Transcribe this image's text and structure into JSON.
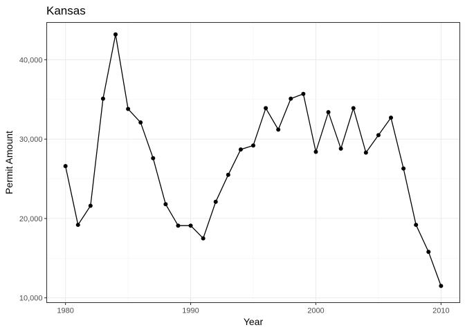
{
  "chart_data": {
    "type": "line",
    "title": "Kansas",
    "xlabel": "Year",
    "ylabel": "Permit Amount",
    "xlim": [
      1978.5,
      2011.5
    ],
    "ylim": [
      9400,
      44700
    ],
    "x_ticks": [
      1980,
      1990,
      2000,
      2010
    ],
    "x_tick_labels": [
      "1980",
      "1990",
      "2000",
      "2010"
    ],
    "y_ticks": [
      10000,
      20000,
      30000,
      40000
    ],
    "y_tick_labels": [
      "10,000",
      "20,000",
      "30,000",
      "40,000"
    ],
    "grid": true,
    "legend": "none",
    "x": [
      1980,
      1981,
      1982,
      1983,
      1984,
      1985,
      1986,
      1987,
      1988,
      1989,
      1990,
      1991,
      1992,
      1993,
      1994,
      1995,
      1996,
      1997,
      1998,
      1999,
      2000,
      2001,
      2002,
      2003,
      2004,
      2005,
      2006,
      2007,
      2008,
      2009,
      2010
    ],
    "series": [
      {
        "values": [
          26600,
          19200,
          21600,
          35100,
          43200,
          33800,
          32100,
          27600,
          21800,
          19100,
          19100,
          17500,
          22100,
          25500,
          28700,
          29200,
          33900,
          31200,
          35100,
          35700,
          28400,
          33400,
          28800,
          33900,
          28300,
          30500,
          32700,
          26300,
          19200,
          15800,
          11500
        ]
      }
    ]
  }
}
